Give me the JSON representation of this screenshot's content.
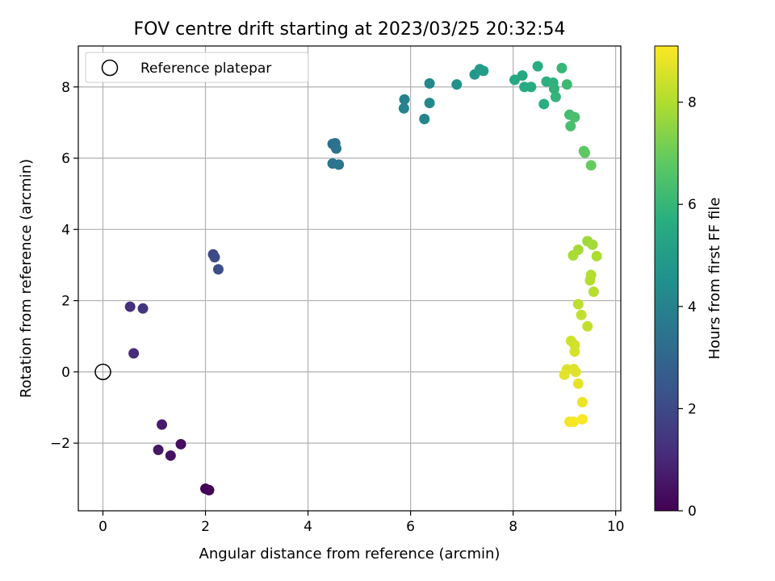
{
  "chart_data": {
    "type": "scatter",
    "title": "FOV centre drift starting at 2023/03/25 20:32:54",
    "xlabel": "Angular distance from reference (arcmin)",
    "ylabel": "Rotation from reference (arcmin)",
    "xlim": [
      -0.48,
      10.1
    ],
    "ylim": [
      -3.9,
      9.15
    ],
    "xticks": [
      0,
      2,
      4,
      6,
      8,
      10
    ],
    "yticks": [
      -2,
      0,
      2,
      4,
      6,
      8
    ],
    "grid": true,
    "legend": {
      "placement": "upper-left",
      "entries": [
        "Reference platepar"
      ]
    },
    "reference_point": {
      "x": 0,
      "y": 0,
      "label": "Reference platepar"
    },
    "colorbar": {
      "label": "Hours from first FF file",
      "range": [
        0,
        9.1
      ],
      "ticks": [
        0,
        2,
        4,
        6,
        8
      ],
      "colormap": "viridis"
    },
    "series": [
      {
        "points": [
          {
            "x": 2.0,
            "y": -3.28,
            "c": 0.0
          },
          {
            "x": 2.07,
            "y": -3.32,
            "c": 0.1
          },
          {
            "x": 1.52,
            "y": -2.03,
            "c": 0.35
          },
          {
            "x": 1.32,
            "y": -2.35,
            "c": 0.45
          },
          {
            "x": 1.08,
            "y": -2.19,
            "c": 0.55
          },
          {
            "x": 1.15,
            "y": -1.48,
            "c": 0.7
          },
          {
            "x": 0.6,
            "y": 0.52,
            "c": 1.15
          },
          {
            "x": 0.53,
            "y": 1.83,
            "c": 1.3
          },
          {
            "x": 0.78,
            "y": 1.78,
            "c": 1.4
          },
          {
            "x": 2.15,
            "y": 3.3,
            "c": 2.0
          },
          {
            "x": 2.18,
            "y": 3.22,
            "c": 2.1
          },
          {
            "x": 2.25,
            "y": 2.88,
            "c": 2.2
          },
          {
            "x": 4.48,
            "y": 6.4,
            "c": 3.3
          },
          {
            "x": 4.53,
            "y": 6.42,
            "c": 3.4
          },
          {
            "x": 4.55,
            "y": 6.27,
            "c": 3.45
          },
          {
            "x": 4.48,
            "y": 5.85,
            "c": 3.5
          },
          {
            "x": 4.6,
            "y": 5.82,
            "c": 3.55
          },
          {
            "x": 5.88,
            "y": 7.65,
            "c": 4.0
          },
          {
            "x": 5.87,
            "y": 7.4,
            "c": 4.05
          },
          {
            "x": 6.27,
            "y": 7.1,
            "c": 4.15
          },
          {
            "x": 6.37,
            "y": 8.1,
            "c": 4.25
          },
          {
            "x": 6.37,
            "y": 7.55,
            "c": 4.3
          },
          {
            "x": 6.9,
            "y": 8.07,
            "c": 4.6
          },
          {
            "x": 7.25,
            "y": 8.35,
            "c": 4.85
          },
          {
            "x": 7.35,
            "y": 8.5,
            "c": 5.0
          },
          {
            "x": 7.42,
            "y": 8.45,
            "c": 5.05
          },
          {
            "x": 8.03,
            "y": 8.2,
            "c": 5.5
          },
          {
            "x": 8.18,
            "y": 8.32,
            "c": 5.55
          },
          {
            "x": 8.22,
            "y": 8.0,
            "c": 5.6
          },
          {
            "x": 8.35,
            "y": 8.0,
            "c": 5.65
          },
          {
            "x": 8.48,
            "y": 8.58,
            "c": 5.7
          },
          {
            "x": 8.6,
            "y": 7.52,
            "c": 5.75
          },
          {
            "x": 8.65,
            "y": 8.15,
            "c": 5.8
          },
          {
            "x": 8.78,
            "y": 8.12,
            "c": 5.85
          },
          {
            "x": 8.8,
            "y": 7.95,
            "c": 5.9
          },
          {
            "x": 8.83,
            "y": 7.72,
            "c": 5.95
          },
          {
            "x": 8.95,
            "y": 8.53,
            "c": 6.05
          },
          {
            "x": 9.05,
            "y": 8.07,
            "c": 6.15
          },
          {
            "x": 9.1,
            "y": 7.22,
            "c": 6.35
          },
          {
            "x": 9.12,
            "y": 6.9,
            "c": 6.4
          },
          {
            "x": 9.2,
            "y": 7.15,
            "c": 6.45
          },
          {
            "x": 9.38,
            "y": 6.2,
            "c": 6.8
          },
          {
            "x": 9.4,
            "y": 6.15,
            "c": 6.85
          },
          {
            "x": 9.52,
            "y": 5.8,
            "c": 6.95
          },
          {
            "x": 9.45,
            "y": 3.67,
            "c": 7.8
          },
          {
            "x": 9.55,
            "y": 3.57,
            "c": 7.85
          },
          {
            "x": 9.27,
            "y": 3.43,
            "c": 7.9
          },
          {
            "x": 9.17,
            "y": 3.27,
            "c": 7.95
          },
          {
            "x": 9.63,
            "y": 3.25,
            "c": 8.0
          },
          {
            "x": 9.52,
            "y": 2.72,
            "c": 8.05
          },
          {
            "x": 9.5,
            "y": 2.57,
            "c": 8.1
          },
          {
            "x": 9.57,
            "y": 2.25,
            "c": 8.15
          },
          {
            "x": 9.27,
            "y": 1.9,
            "c": 8.2
          },
          {
            "x": 9.33,
            "y": 1.6,
            "c": 8.25
          },
          {
            "x": 9.45,
            "y": 1.28,
            "c": 8.3
          },
          {
            "x": 9.13,
            "y": 0.87,
            "c": 8.45
          },
          {
            "x": 9.2,
            "y": 0.75,
            "c": 8.5
          },
          {
            "x": 9.2,
            "y": 0.57,
            "c": 8.55
          },
          {
            "x": 9.05,
            "y": 0.07,
            "c": 8.6
          },
          {
            "x": 9.18,
            "y": 0.08,
            "c": 8.65
          },
          {
            "x": 9.22,
            "y": 0.0,
            "c": 8.7
          },
          {
            "x": 9.0,
            "y": -0.08,
            "c": 8.7
          },
          {
            "x": 9.27,
            "y": -0.33,
            "c": 8.8
          },
          {
            "x": 9.35,
            "y": -0.85,
            "c": 8.85
          },
          {
            "x": 9.1,
            "y": -1.4,
            "c": 8.95
          },
          {
            "x": 9.18,
            "y": -1.4,
            "c": 9.0
          },
          {
            "x": 9.35,
            "y": -1.33,
            "c": 9.05
          }
        ]
      }
    ]
  }
}
